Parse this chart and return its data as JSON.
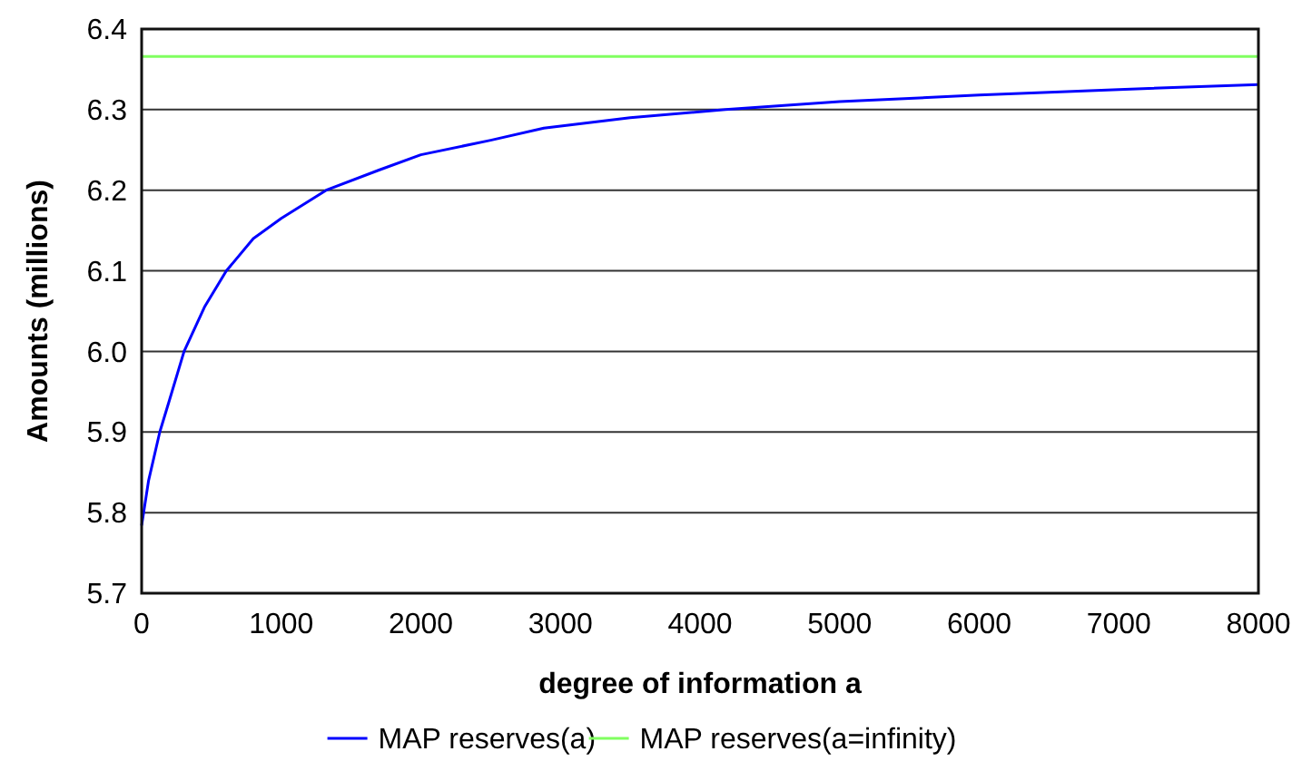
{
  "chart_data": {
    "type": "line",
    "xlabel": "degree of information a",
    "ylabel": "Amounts (millions)",
    "xlim": [
      0,
      8000
    ],
    "xticks": [
      0,
      1000,
      2000,
      3000,
      4000,
      5000,
      6000,
      7000,
      8000
    ],
    "ylim": [
      5.7,
      6.4
    ],
    "yticks": [
      5.7,
      5.8,
      5.9,
      {
        "value": 6,
        "label": "6.0"
      },
      6.1,
      6.2,
      6.3,
      6.4
    ],
    "grid": "y",
    "legend": "bottom",
    "marker": "none",
    "line_style": "solid",
    "series": [
      {
        "name": "MAP reserves(a)",
        "color": "#0000ff",
        "x": [
          0,
          50,
          130,
          200,
          304,
          450,
          607,
          800,
          1000,
          1322,
          1700,
          2000,
          2500,
          2881,
          3500,
          4182,
          5000,
          6000,
          7000,
          8000
        ],
        "values": [
          5.784,
          5.84,
          5.9,
          5.94,
          6.0,
          6.055,
          6.1,
          6.14,
          6.165,
          6.2,
          6.225,
          6.244,
          6.262,
          6.277,
          6.29,
          6.3,
          6.31,
          6.318,
          6.325,
          6.331
        ]
      },
      {
        "name": "MAP reserves(a=infinity)",
        "color": "#80ff60",
        "x": [
          0,
          8000
        ],
        "values": [
          6.366,
          6.366
        ]
      }
    ]
  }
}
